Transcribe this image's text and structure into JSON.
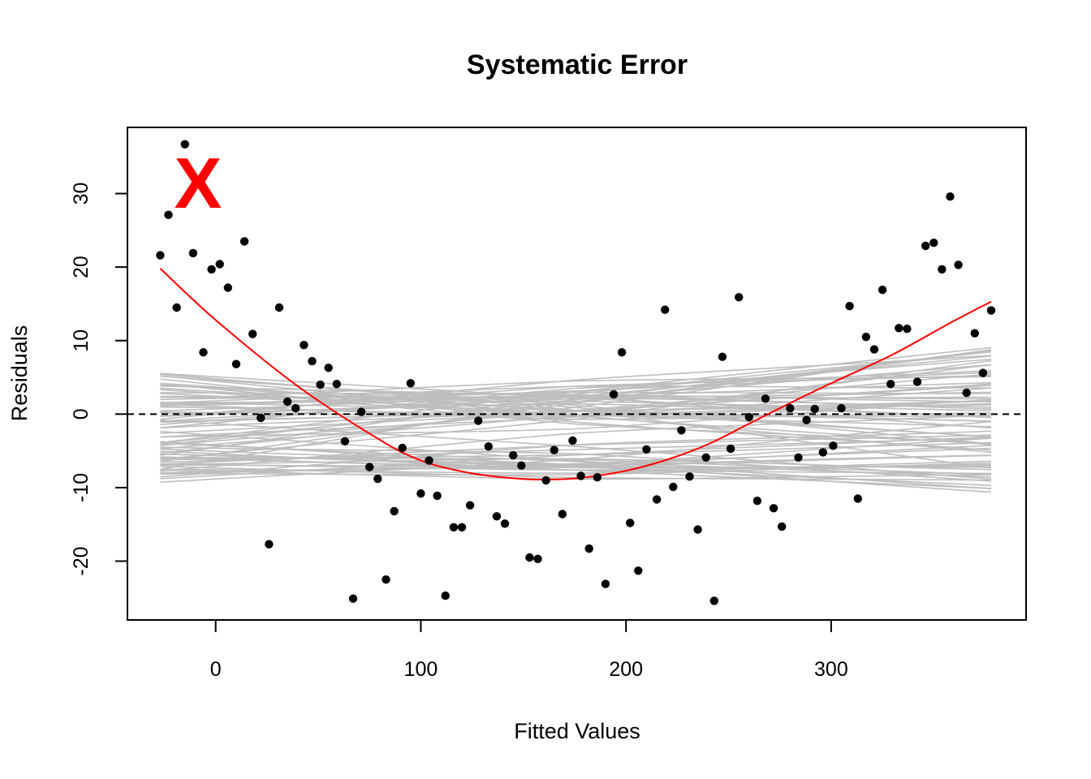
{
  "chart_data": {
    "type": "scatter",
    "title": "Systematic Error",
    "xlabel": "Fitted Values",
    "ylabel": "Residuals",
    "xlim": [
      -43,
      395
    ],
    "ylim": [
      -28,
      39
    ],
    "xticks": [
      0,
      100,
      200,
      300
    ],
    "yticks": [
      -20,
      -10,
      0,
      10,
      20,
      30
    ],
    "marker_label": "X",
    "colors": {
      "points": "#000000",
      "fit": "#ff0000",
      "envelope": "#bebebe",
      "reference": "#000000",
      "marker": "#ff0000"
    },
    "reference_line": {
      "y": 0,
      "style": "dashed"
    },
    "fit_curve": {
      "name": "smooth fit",
      "x": [
        -27,
        0,
        40,
        80,
        100,
        120,
        140,
        160,
        180,
        200,
        220,
        240,
        260,
        280,
        300,
        330,
        360,
        378
      ],
      "y": [
        19.8,
        12.8,
        3.8,
        -3.5,
        -6.3,
        -7.8,
        -8.6,
        -8.9,
        -8.6,
        -7.7,
        -6.2,
        -4.1,
        -1.3,
        1.5,
        4.2,
        8.1,
        12.7,
        15.3
      ]
    },
    "envelope_curves": {
      "name": "simulated residual curves",
      "x_range": [
        -27,
        378
      ],
      "count": 80,
      "start_range": [
        -9.4,
        5.8
      ],
      "end_range": [
        -10.8,
        10.6
      ]
    },
    "points": {
      "x": [
        -27,
        -23,
        -19,
        -15,
        -11,
        -6,
        -2,
        2,
        6,
        10,
        14,
        18,
        22,
        26,
        31,
        35,
        39,
        43,
        47,
        51,
        55,
        59,
        63,
        67,
        71,
        75,
        79,
        83,
        87,
        91,
        95,
        100,
        104,
        108,
        112,
        116,
        120,
        124,
        128,
        133,
        137,
        141,
        145,
        149,
        153,
        157,
        161,
        165,
        169,
        174,
        178,
        182,
        186,
        190,
        194,
        198,
        202,
        206,
        210,
        215,
        219,
        223,
        227,
        231,
        235,
        239,
        243,
        247,
        251,
        255,
        260,
        264,
        268,
        272,
        276,
        280,
        284,
        288,
        292,
        296,
        301,
        305,
        309,
        313,
        317,
        321,
        325,
        329,
        333,
        337,
        342,
        346,
        350,
        354,
        358,
        362,
        366,
        370,
        374,
        378
      ],
      "y": [
        21.6,
        27.1,
        14.5,
        36.7,
        21.9,
        8.4,
        19.7,
        20.4,
        17.2,
        6.8,
        23.5,
        10.9,
        -0.5,
        -17.7,
        14.5,
        1.7,
        0.8,
        9.4,
        7.2,
        4.0,
        6.3,
        4.1,
        -3.7,
        -25.1,
        0.3,
        -7.2,
        -8.8,
        -22.5,
        -13.2,
        -4.6,
        4.2,
        -10.8,
        -6.3,
        -11.1,
        -24.7,
        -15.4,
        -15.4,
        -12.4,
        -0.9,
        -4.4,
        -13.9,
        -14.9,
        -5.6,
        -7.0,
        -19.5,
        -19.7,
        -9.0,
        -4.9,
        -13.6,
        -3.6,
        -8.4,
        -18.3,
        -8.6,
        -23.1,
        2.7,
        8.4,
        -14.8,
        -21.3,
        -4.8,
        -11.6,
        14.2,
        -9.9,
        -2.2,
        -8.5,
        -15.7,
        -5.9,
        -25.4,
        7.8,
        -4.7,
        15.9,
        -0.4,
        -11.8,
        2.1,
        -12.8,
        -15.3,
        0.8,
        -5.9,
        -0.8,
        0.7,
        -5.2,
        -4.3,
        0.8,
        14.7,
        -11.5,
        10.5,
        8.8,
        16.9,
        4.1,
        11.7,
        11.6,
        4.4,
        22.9,
        23.3,
        19.7,
        29.6,
        20.3,
        2.9,
        11.0,
        5.6,
        14.1
      ]
    }
  }
}
